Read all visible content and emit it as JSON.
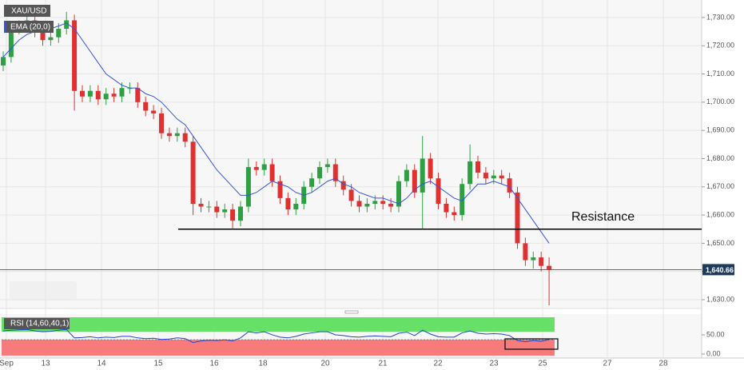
{
  "chart_data": [
    {
      "type": "candlestick",
      "series": [
        {
          "name": "XAU/USD",
          "up_color": "#2ea043",
          "down_color": "#e03131",
          "open": [
            1713,
            1716,
            1726,
            1727,
            1729,
            1725,
            1722,
            1723,
            1726,
            1729,
            1704,
            1702,
            1704,
            1701,
            1703,
            1702,
            1705,
            1705,
            1700,
            1697,
            1696,
            1689,
            1688,
            1689,
            1686,
            1664,
            1663,
            1663,
            1661,
            1662,
            1658,
            1663,
            1677,
            1676,
            1678,
            1672,
            1666,
            1662,
            1664,
            1670,
            1673,
            1677,
            1678,
            1672,
            1669,
            1665,
            1663,
            1664,
            1665,
            1664,
            1663,
            1672,
            1676,
            1668,
            1680,
            1673,
            1664,
            1661,
            1660,
            1671,
            1679,
            1675,
            1673,
            1674,
            1673,
            1668,
            1650,
            1644,
            1645,
            1642
          ],
          "high": [
            1718,
            1728,
            1729,
            1731,
            1731,
            1727,
            1725,
            1728,
            1732,
            1731,
            1706,
            1706,
            1706,
            1705,
            1705,
            1707,
            1707,
            1707,
            1702,
            1699,
            1698,
            1691,
            1691,
            1691,
            1688,
            1666,
            1665,
            1665,
            1664,
            1664,
            1665,
            1680,
            1679,
            1680,
            1680,
            1674,
            1668,
            1666,
            1672,
            1675,
            1679,
            1680,
            1680,
            1674,
            1671,
            1667,
            1666,
            1667,
            1667,
            1666,
            1674,
            1678,
            1678,
            1688,
            1682,
            1675,
            1666,
            1663,
            1673,
            1685,
            1681,
            1677,
            1676,
            1676,
            1675,
            1670,
            1652,
            1647,
            1647,
            1645
          ],
          "low": [
            1711,
            1714,
            1724,
            1725,
            1723,
            1720,
            1720,
            1721,
            1724,
            1697,
            1700,
            1700,
            1699,
            1699,
            1700,
            1700,
            1703,
            1698,
            1695,
            1694,
            1687,
            1686,
            1686,
            1684,
            1660,
            1661,
            1661,
            1659,
            1659,
            1655,
            1656,
            1661,
            1674,
            1674,
            1670,
            1664,
            1660,
            1660,
            1662,
            1668,
            1671,
            1675,
            1670,
            1667,
            1663,
            1661,
            1661,
            1662,
            1662,
            1661,
            1661,
            1670,
            1666,
            1655,
            1671,
            1662,
            1659,
            1658,
            1658,
            1669,
            1673,
            1671,
            1671,
            1671,
            1666,
            1648,
            1642,
            1641,
            1640,
            1628
          ],
          "close": [
            1716,
            1726,
            1727,
            1729,
            1725,
            1722,
            1723,
            1726,
            1729,
            1704,
            1702,
            1704,
            1701,
            1703,
            1702,
            1705,
            1705,
            1700,
            1697,
            1696,
            1689,
            1688,
            1689,
            1686,
            1664,
            1663,
            1663,
            1661,
            1662,
            1658,
            1663,
            1677,
            1676,
            1678,
            1672,
            1666,
            1662,
            1664,
            1670,
            1673,
            1677,
            1678,
            1672,
            1669,
            1665,
            1663,
            1664,
            1665,
            1664,
            1663,
            1672,
            1676,
            1668,
            1680,
            1673,
            1664,
            1661,
            1660,
            1671,
            1679,
            1675,
            1673,
            1674,
            1673,
            1668,
            1650,
            1644,
            1645,
            1642,
            1640.66
          ]
        },
        {
          "name": "EMA (20,0)",
          "color": "#3355dd",
          "values": [
            1716,
            1719,
            1722,
            1724,
            1725,
            1725,
            1726,
            1727,
            1728,
            1726,
            1722,
            1718,
            1714,
            1710,
            1708,
            1706,
            1705,
            1705,
            1703,
            1702,
            1700,
            1697,
            1694,
            1692,
            1688,
            1684,
            1680,
            1676,
            1673,
            1670,
            1667,
            1667,
            1668,
            1670,
            1672,
            1671,
            1670,
            1668,
            1667,
            1668,
            1670,
            1672,
            1673,
            1671,
            1670,
            1668,
            1667,
            1666,
            1666,
            1665,
            1664,
            1666,
            1669,
            1671,
            1672,
            1670,
            1668,
            1666,
            1665,
            1668,
            1671,
            1671,
            1672,
            1671,
            1670,
            1666,
            1662,
            1658,
            1654,
            1650
          ]
        }
      ],
      "ylim": [
        1626.9,
        1736.2
      ],
      "yticks": [
        {
          "value": 1630,
          "label": "1,630.00"
        },
        {
          "value": 1640,
          "label": "1,640.00"
        },
        {
          "value": 1650,
          "label": "1,650.00"
        },
        {
          "value": 1660,
          "label": "1,660.00"
        },
        {
          "value": 1670,
          "label": "1,670.00"
        },
        {
          "value": 1680,
          "label": "1,680.00"
        },
        {
          "value": 1690,
          "label": "1,690.00"
        },
        {
          "value": 1700,
          "label": "1,700.00"
        },
        {
          "value": 1710,
          "label": "1,710.00"
        },
        {
          "value": 1720,
          "label": "1,720.00"
        },
        {
          "value": 1730,
          "label": "1,730.00"
        }
      ],
      "last_price": {
        "value": 1640.66,
        "label": "1,640.66"
      },
      "resistance": {
        "value": 1655,
        "label": "Resistance"
      },
      "grid": true,
      "xtick_labels": [
        "Sep",
        "13",
        "14",
        "15",
        "16",
        "18",
        "20",
        "21",
        "22",
        "23",
        "25",
        "27",
        "28"
      ]
    },
    {
      "type": "line",
      "series": [
        {
          "name": "RSI (14,60,40,1)",
          "color": "#2244cc",
          "values": [
            60,
            62,
            63,
            64,
            60,
            58,
            59,
            62,
            64,
            42,
            43,
            45,
            42,
            44,
            43,
            46,
            46,
            42,
            40,
            41,
            38,
            39,
            42,
            40,
            30,
            34,
            36,
            35,
            37,
            34,
            42,
            58,
            55,
            58,
            50,
            44,
            42,
            46,
            52,
            55,
            58,
            58,
            50,
            48,
            45,
            44,
            46,
            47,
            46,
            45,
            54,
            57,
            48,
            62,
            52,
            45,
            44,
            44,
            55,
            60,
            54,
            52,
            53,
            52,
            48,
            35,
            32,
            35,
            33,
            38
          ]
        }
      ],
      "ylim": [
        -10.4,
        104
      ],
      "yticks": [
        {
          "value": 50,
          "label": "50.00"
        },
        {
          "value": 0,
          "label": "0.00"
        }
      ]
    }
  ]
}
